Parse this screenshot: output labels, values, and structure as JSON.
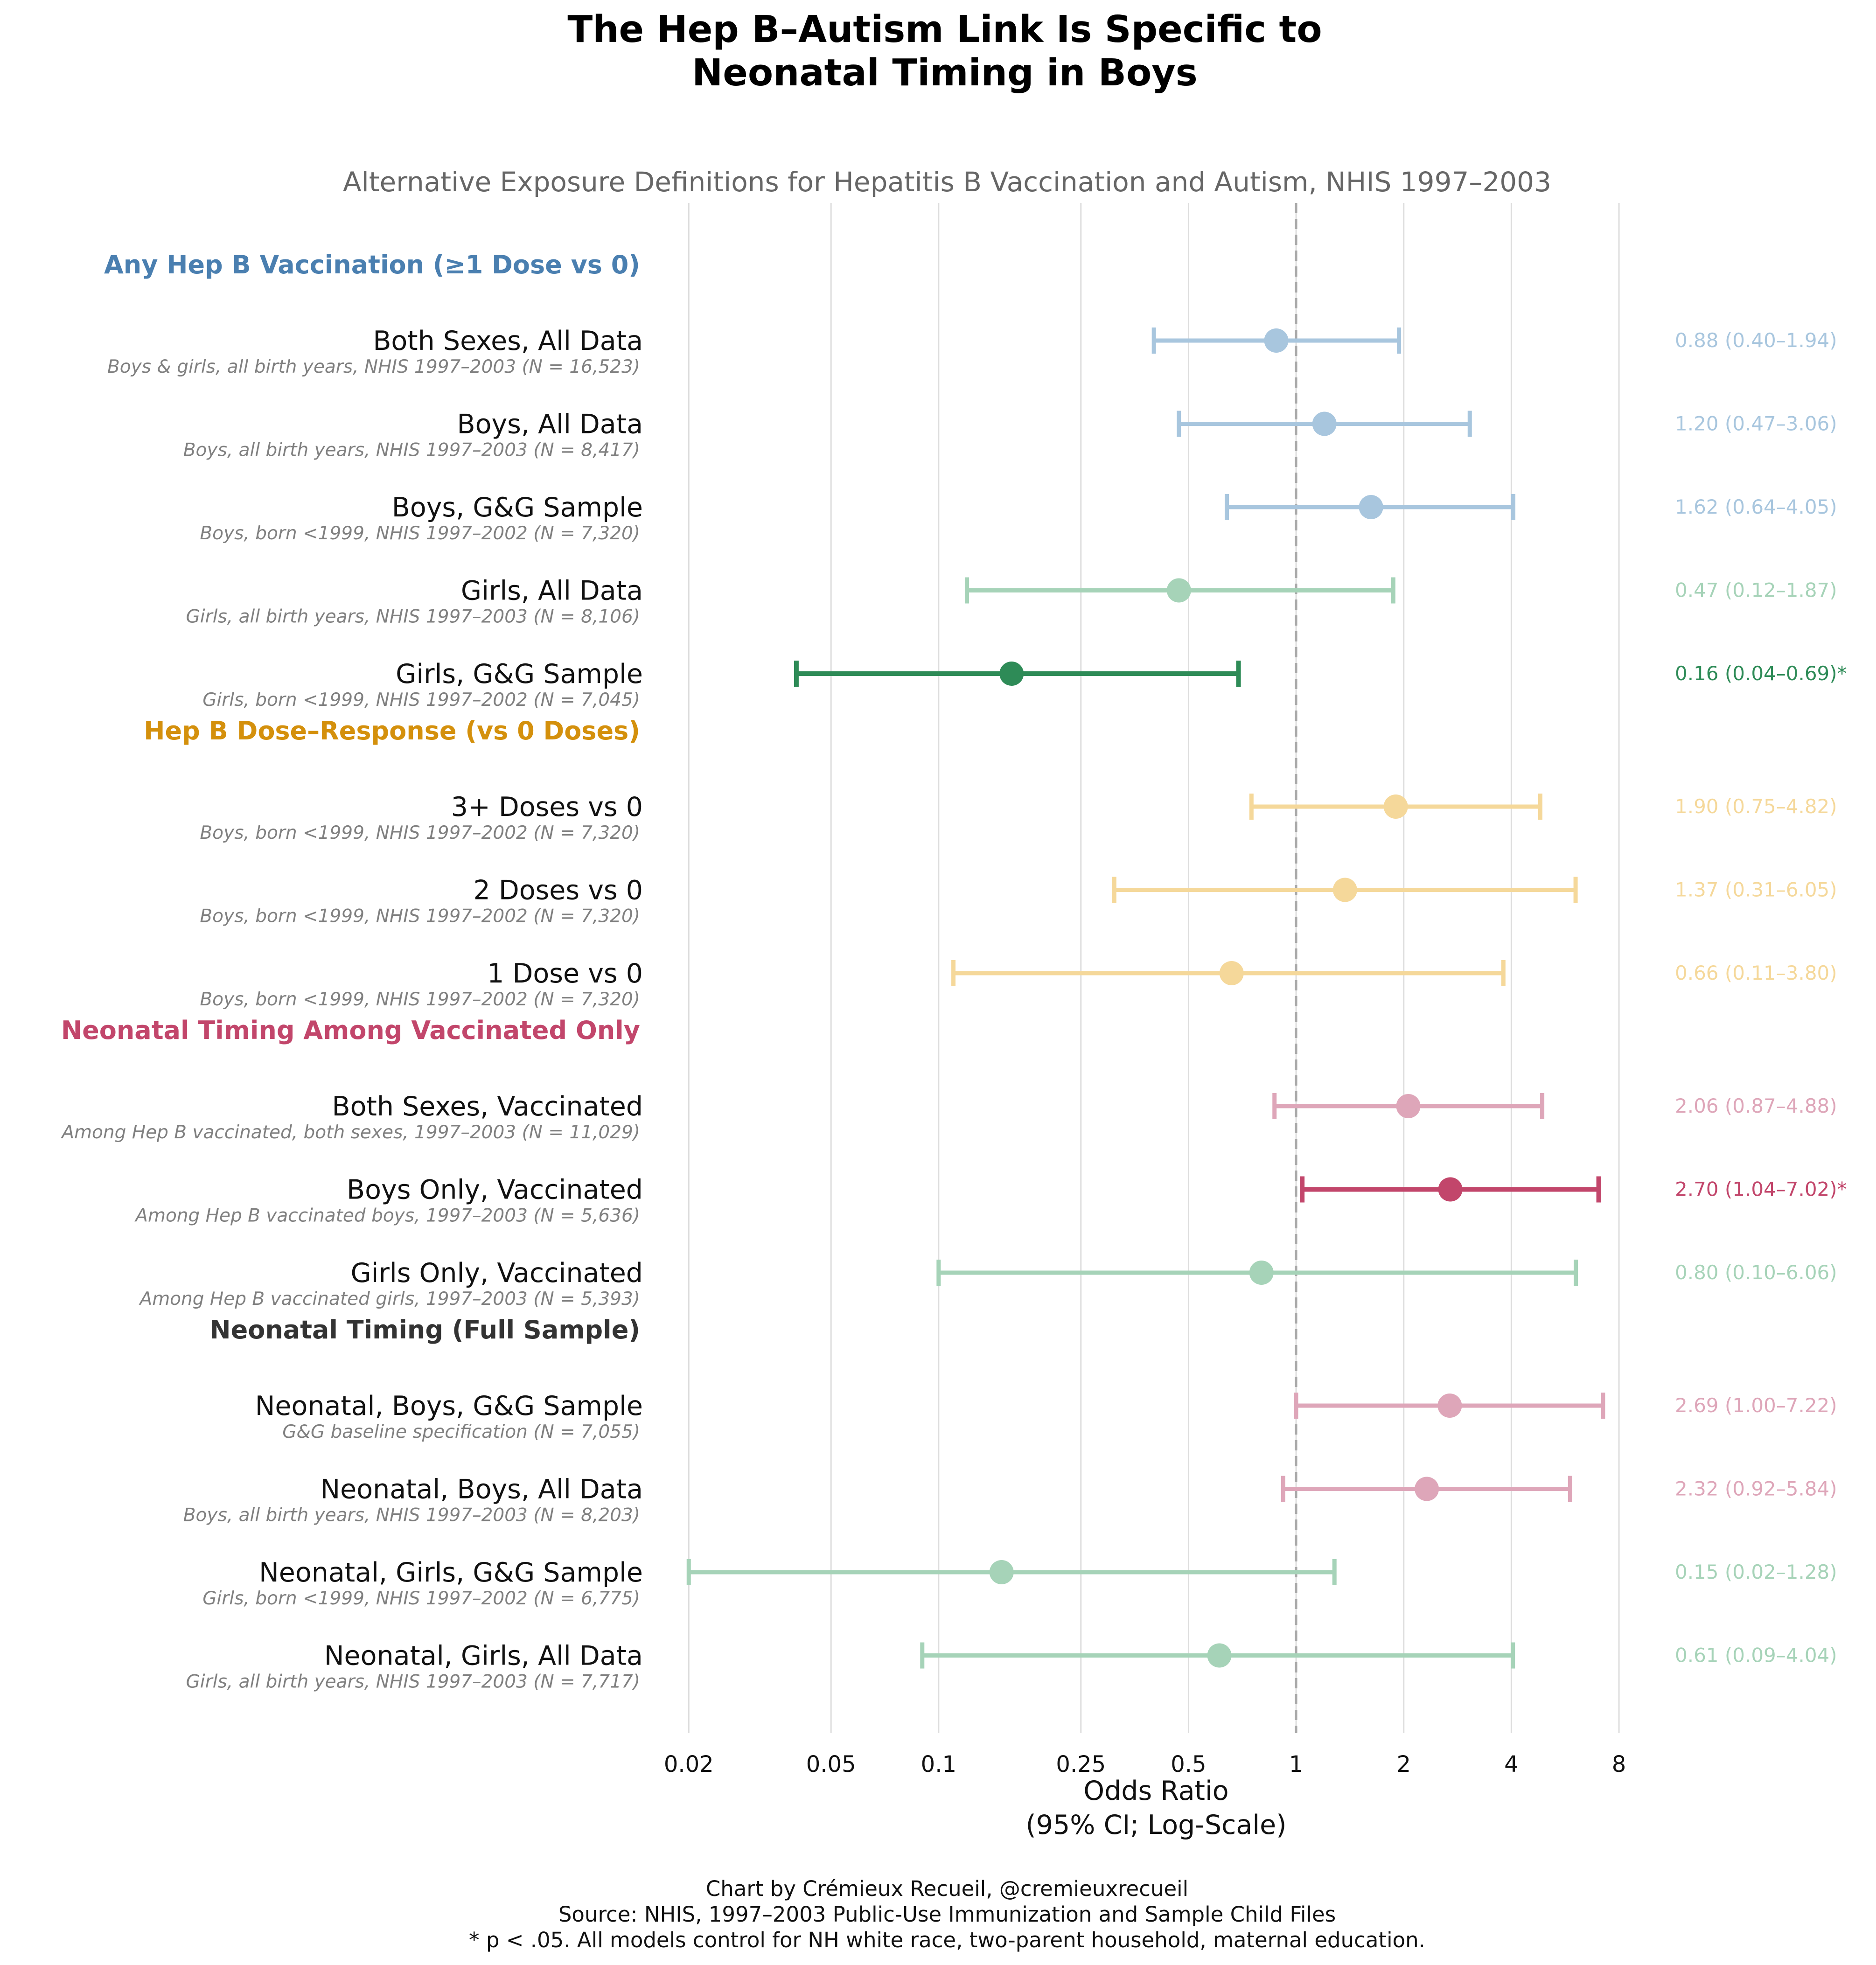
{
  "title_lines": [
    "The Hep B–Autism Link Is Specific to",
    "Neonatal Timing in Boys"
  ],
  "subtitle": "Alternative Exposure Definitions for Hepatitis B Vaccination and Autism, NHIS 1997–2003",
  "footer_lines": [
    "Chart by Crémieux Recueil, @cremieuxrecueil",
    "Source: NHIS, 1997–2003 Public-Use Immunization and Sample Child Files",
    "* p < .05. All models control for NH white race, two-parent household, maternal education."
  ],
  "colors": {
    "blue_light": "#a8c6de",
    "green_light": "#a6d3b8",
    "green_dark": "#2e8b57",
    "yellow_light": "#f5d89a",
    "pink_light": "#dea6b9",
    "pink_dark": "#c2466b",
    "ref_line": "#aaaaaa",
    "grid": "#dddddd"
  },
  "chart_data": {
    "type": "forest",
    "title": "The Hep B–Autism Link Is Specific to Neonatal Timing in Boys",
    "subtitle": "Alternative Exposure Definitions for Hepatitis B Vaccination and Autism, NHIS 1997–2003",
    "xlabel_lines": [
      "Odds Ratio",
      "(95% CI; Log-Scale)"
    ],
    "xscale": "log",
    "xlim": [
      0.016,
      12
    ],
    "xticks": [
      0.02,
      0.05,
      0.1,
      0.25,
      0.5,
      1,
      2,
      4,
      8
    ],
    "xtick_labels": [
      "0.02",
      "0.05",
      "0.1",
      "0.25",
      "0.5",
      "1",
      "2",
      "4",
      "8"
    ],
    "reference_line": 1,
    "groups": [
      {
        "header": "Any Hep B Vaccination (≥1 Dose vs 0)",
        "header_color": "#4a7fb0",
        "rows": [
          {
            "label": "Both Sexes, All Data",
            "sub": "Boys & girls, all birth years, NHIS 1997–2003 (N = 16,523)",
            "or": 0.88,
            "lo": 0.4,
            "hi": 1.94,
            "text": "0.88 (0.40–1.94)",
            "color": "#a8c6de",
            "sig": false
          },
          {
            "label": "Boys, All Data",
            "sub": "Boys, all birth years, NHIS 1997–2003 (N = 8,417)",
            "or": 1.2,
            "lo": 0.47,
            "hi": 3.06,
            "text": "1.20 (0.47–3.06)",
            "color": "#a8c6de",
            "sig": false
          },
          {
            "label": "Boys, G&G Sample",
            "sub": "Boys, born <1999, NHIS 1997–2002 (N = 7,320)",
            "or": 1.62,
            "lo": 0.64,
            "hi": 4.05,
            "text": "1.62 (0.64–4.05)",
            "color": "#a8c6de",
            "sig": false
          },
          {
            "label": "Girls, All Data",
            "sub": "Girls, all birth years, NHIS 1997–2003 (N = 8,106)",
            "or": 0.47,
            "lo": 0.12,
            "hi": 1.87,
            "text": "0.47 (0.12–1.87)",
            "color": "#a6d3b8",
            "sig": false
          },
          {
            "label": "Girls, G&G Sample",
            "sub": "Girls, born <1999, NHIS 1997–2002 (N = 7,045)",
            "or": 0.16,
            "lo": 0.04,
            "hi": 0.69,
            "text": "0.16 (0.04–0.69)*",
            "color": "#2e8b57",
            "sig": true
          }
        ]
      },
      {
        "header": "Hep B Dose–Response (vs 0 Doses)",
        "header_color": "#d4900c",
        "rows": [
          {
            "label": "3+ Doses vs 0",
            "sub": "Boys, born <1999, NHIS 1997–2002 (N = 7,320)",
            "or": 1.9,
            "lo": 0.75,
            "hi": 4.82,
            "text": "1.90 (0.75–4.82)",
            "color": "#f5d89a",
            "sig": false
          },
          {
            "label": "2 Doses vs 0",
            "sub": "Boys, born <1999, NHIS 1997–2002 (N = 7,320)",
            "or": 1.37,
            "lo": 0.31,
            "hi": 6.05,
            "text": "1.37 (0.31–6.05)",
            "color": "#f5d89a",
            "sig": false
          },
          {
            "label": "1 Dose vs 0",
            "sub": "Boys, born <1999, NHIS 1997–2002 (N = 7,320)",
            "or": 0.66,
            "lo": 0.11,
            "hi": 3.8,
            "text": "0.66 (0.11–3.80)",
            "color": "#f5d89a",
            "sig": false
          }
        ]
      },
      {
        "header": "Neonatal Timing Among Vaccinated Only",
        "header_color": "#c2466b",
        "rows": [
          {
            "label": "Both Sexes, Vaccinated",
            "sub": "Among Hep B vaccinated, both sexes, 1997–2003 (N = 11,029)",
            "or": 2.06,
            "lo": 0.87,
            "hi": 4.88,
            "text": "2.06 (0.87–4.88)",
            "color": "#dea6b9",
            "sig": false
          },
          {
            "label": "Boys Only, Vaccinated",
            "sub": "Among Hep B vaccinated boys, 1997–2003 (N = 5,636)",
            "or": 2.7,
            "lo": 1.04,
            "hi": 7.02,
            "text": "2.70 (1.04–7.02)*",
            "color": "#c2466b",
            "sig": true
          },
          {
            "label": "Girls Only, Vaccinated",
            "sub": "Among Hep B vaccinated girls, 1997–2003 (N = 5,393)",
            "or": 0.8,
            "lo": 0.1,
            "hi": 6.06,
            "text": "0.80 (0.10–6.06)",
            "color": "#a6d3b8",
            "sig": false
          }
        ]
      },
      {
        "header": "Neonatal Timing (Full Sample)",
        "header_color": "#333333",
        "rows": [
          {
            "label": "Neonatal, Boys, G&G Sample",
            "sub": "G&G baseline specification (N = 7,055)",
            "or": 2.69,
            "lo": 1.0,
            "hi": 7.22,
            "text": "2.69 (1.00–7.22)",
            "color": "#dea6b9",
            "sig": false
          },
          {
            "label": "Neonatal, Boys, All Data",
            "sub": "Boys, all birth years, NHIS 1997–2003 (N = 8,203)",
            "or": 2.32,
            "lo": 0.92,
            "hi": 5.84,
            "text": "2.32 (0.92–5.84)",
            "color": "#dea6b9",
            "sig": false
          },
          {
            "label": "Neonatal, Girls, G&G Sample",
            "sub": "Girls, born <1999, NHIS 1997–2002 (N = 6,775)",
            "or": 0.15,
            "lo": 0.02,
            "hi": 1.28,
            "text": "0.15 (0.02–1.28)",
            "color": "#a6d3b8",
            "sig": false
          },
          {
            "label": "Neonatal, Girls, All Data",
            "sub": "Girls, all birth years, NHIS 1997–2003 (N = 7,717)",
            "or": 0.61,
            "lo": 0.09,
            "hi": 4.04,
            "text": "0.61 (0.09–4.04)",
            "color": "#a6d3b8",
            "sig": false
          }
        ]
      }
    ]
  }
}
